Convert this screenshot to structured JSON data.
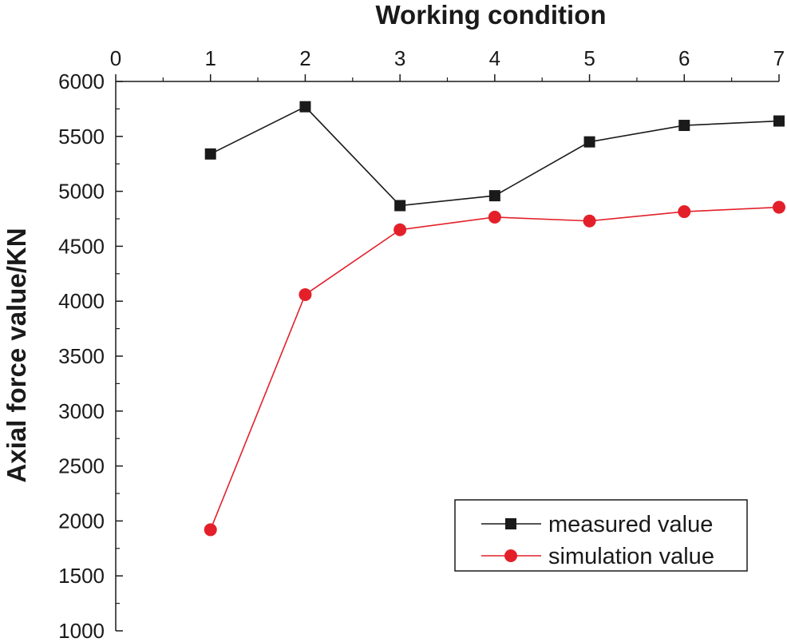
{
  "chart_data": {
    "type": "line",
    "title": "",
    "xlabel": "Working condition",
    "ylabel": "Axial force value/KN",
    "x_axis_position": "top",
    "xlim": [
      0,
      7
    ],
    "ylim": [
      1000,
      6000
    ],
    "x_ticks": [
      "0",
      "1",
      "2",
      "3",
      "4",
      "5",
      "6",
      "7"
    ],
    "y_ticks": [
      "6000",
      "5500",
      "5000",
      "4500",
      "4000",
      "3500",
      "3000",
      "2500",
      "2000",
      "1500",
      "1000"
    ],
    "x": [
      1,
      2,
      3,
      4,
      5,
      6,
      7
    ],
    "series": [
      {
        "name": "measured value",
        "marker": "square",
        "color": "#1a1a1a",
        "values": [
          5340,
          5770,
          4870,
          4960,
          5450,
          5600,
          5640
        ]
      },
      {
        "name": "simulation value",
        "marker": "circle",
        "color": "#e3202a",
        "values": [
          1920,
          4060,
          4650,
          4765,
          4730,
          4815,
          4855
        ]
      }
    ],
    "grid": false,
    "legend_position": "bottom-right"
  }
}
